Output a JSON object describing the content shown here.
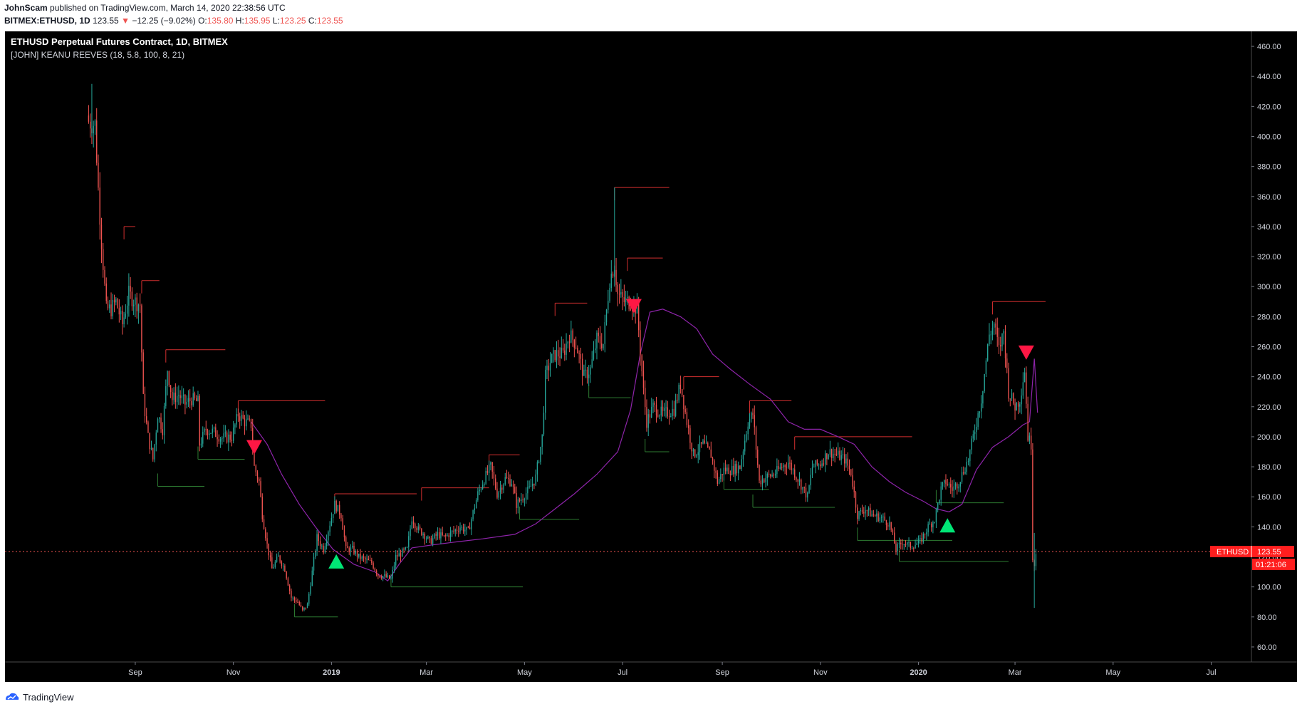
{
  "header": {
    "publisher": "JohnScam",
    "published_text": "published on TradingView.com, March 14, 2020 22:38:56 UTC",
    "symbol": "BITMEX:ETHUSD, 1D",
    "last": "123.55",
    "change": "−12.25 (−9.02%)",
    "o_label": "O:",
    "o": "135.80",
    "h_label": "H:",
    "h": "135.95",
    "l_label": "L:",
    "l": "123.25",
    "c_label": "C:",
    "c": "123.55"
  },
  "chart": {
    "title": "ETHUSD Perpetual Futures Contract, 1D, BITMEX",
    "indicator": "[JOHN] KEANU REEVES (18, 5.8, 100, 8, 21)",
    "price_tag_label": "ETHUSD",
    "price_tag_value": "123.55",
    "countdown": "01:21:06"
  },
  "footer": {
    "brand": "TradingView"
  },
  "colors": {
    "background": "#000000",
    "up_candle": "#26a69a",
    "down_candle": "#ef5350",
    "resistance": "#d32f2f",
    "support": "#2e7d32",
    "trail": "#8e24aa",
    "sell_signal": "#ff1744",
    "buy_signal": "#00e676"
  },
  "chart_data": {
    "type": "candlestick",
    "title": "ETHUSD Perpetual Futures Contract, 1D, BITMEX",
    "ylim": [
      50,
      470
    ],
    "y_ticks": [
      60,
      80,
      100,
      120,
      140,
      160,
      180,
      200,
      220,
      240,
      260,
      280,
      300,
      320,
      340,
      360,
      380,
      400,
      420,
      440,
      460
    ],
    "y_tick_labels": [
      "60.00",
      "80.00",
      "100.00",
      "120.00",
      "140.00",
      "160.00",
      "180.00",
      "200.00",
      "220.00",
      "240.00",
      "260.00",
      "280.00",
      "300.00",
      "320.00",
      "340.00",
      "360.00",
      "380.00",
      "400.00",
      "420.00",
      "440.00",
      "460.00"
    ],
    "x_range": [
      "2018-06-12",
      "2020-07-26"
    ],
    "x_ticks": [
      {
        "date": "2018-09-01",
        "label": "Sep"
      },
      {
        "date": "2018-11-01",
        "label": "Nov"
      },
      {
        "date": "2019-01-01",
        "label": "2019"
      },
      {
        "date": "2019-03-01",
        "label": "Mar"
      },
      {
        "date": "2019-05-01",
        "label": "May"
      },
      {
        "date": "2019-07-01",
        "label": "Jul"
      },
      {
        "date": "2019-09-01",
        "label": "Sep"
      },
      {
        "date": "2019-11-01",
        "label": "Nov"
      },
      {
        "date": "2020-01-01",
        "label": "2020"
      },
      {
        "date": "2020-03-01",
        "label": "Mar"
      },
      {
        "date": "2020-05-01",
        "label": "May"
      },
      {
        "date": "2020-07-01",
        "label": "Jul"
      }
    ],
    "price_path": [
      [
        "2018-08-03",
        410
      ],
      [
        "2018-08-07",
        408
      ],
      [
        "2018-08-09",
        365
      ],
      [
        "2018-08-11",
        330
      ],
      [
        "2018-08-14",
        285
      ],
      [
        "2018-08-17",
        285
      ],
      [
        "2018-08-20",
        290
      ],
      [
        "2018-08-24",
        275
      ],
      [
        "2018-08-28",
        295
      ],
      [
        "2018-09-01",
        290
      ],
      [
        "2018-09-04",
        288
      ],
      [
        "2018-09-06",
        225
      ],
      [
        "2018-09-09",
        200
      ],
      [
        "2018-09-12",
        185
      ],
      [
        "2018-09-15",
        215
      ],
      [
        "2018-09-18",
        205
      ],
      [
        "2018-09-21",
        245
      ],
      [
        "2018-09-24",
        225
      ],
      [
        "2018-09-28",
        228
      ],
      [
        "2018-10-02",
        222
      ],
      [
        "2018-10-06",
        225
      ],
      [
        "2018-10-10",
        223
      ],
      [
        "2018-10-11",
        195
      ],
      [
        "2018-10-15",
        205
      ],
      [
        "2018-10-20",
        203
      ],
      [
        "2018-10-25",
        199
      ],
      [
        "2018-10-31",
        200
      ],
      [
        "2018-11-04",
        215
      ],
      [
        "2018-11-08",
        210
      ],
      [
        "2018-11-12",
        208
      ],
      [
        "2018-11-14",
        180
      ],
      [
        "2018-11-17",
        170
      ],
      [
        "2018-11-19",
        148
      ],
      [
        "2018-11-22",
        128
      ],
      [
        "2018-11-25",
        112
      ],
      [
        "2018-11-29",
        120
      ],
      [
        "2018-12-03",
        112
      ],
      [
        "2018-12-07",
        93
      ],
      [
        "2018-12-11",
        90
      ],
      [
        "2018-12-14",
        84
      ],
      [
        "2018-12-17",
        88
      ],
      [
        "2018-12-20",
        110
      ],
      [
        "2018-12-23",
        133
      ],
      [
        "2018-12-27",
        125
      ],
      [
        "2018-12-30",
        138
      ],
      [
        "2019-01-03",
        155
      ],
      [
        "2019-01-07",
        148
      ],
      [
        "2019-01-10",
        125
      ],
      [
        "2019-01-14",
        125
      ],
      [
        "2019-01-18",
        120
      ],
      [
        "2019-01-22",
        118
      ],
      [
        "2019-01-26",
        116
      ],
      [
        "2019-01-30",
        108
      ],
      [
        "2019-02-03",
        107
      ],
      [
        "2019-02-07",
        105
      ],
      [
        "2019-02-10",
        120
      ],
      [
        "2019-02-17",
        125
      ],
      [
        "2019-02-20",
        146
      ],
      [
        "2019-02-24",
        138
      ],
      [
        "2019-02-27",
        136
      ],
      [
        "2019-03-03",
        130
      ],
      [
        "2019-03-08",
        135
      ],
      [
        "2019-03-12",
        133
      ],
      [
        "2019-03-18",
        137
      ],
      [
        "2019-03-22",
        140
      ],
      [
        "2019-03-27",
        137
      ],
      [
        "2019-04-02",
        162
      ],
      [
        "2019-04-06",
        172
      ],
      [
        "2019-04-10",
        180
      ],
      [
        "2019-04-14",
        162
      ],
      [
        "2019-04-19",
        172
      ],
      [
        "2019-04-23",
        170
      ],
      [
        "2019-04-26",
        155
      ],
      [
        "2019-04-30",
        160
      ],
      [
        "2019-05-04",
        165
      ],
      [
        "2019-05-08",
        173
      ],
      [
        "2019-05-12",
        200
      ],
      [
        "2019-05-14",
        240
      ],
      [
        "2019-05-17",
        250
      ],
      [
        "2019-05-20",
        255
      ],
      [
        "2019-05-25",
        255
      ],
      [
        "2019-05-29",
        268
      ],
      [
        "2019-06-02",
        262
      ],
      [
        "2019-06-07",
        240
      ],
      [
        "2019-06-11",
        245
      ],
      [
        "2019-06-15",
        265
      ],
      [
        "2019-06-19",
        262
      ],
      [
        "2019-06-23",
        305
      ],
      [
        "2019-06-26",
        315
      ],
      [
        "2019-06-28",
        295
      ],
      [
        "2019-07-02",
        290
      ],
      [
        "2019-07-06",
        290
      ],
      [
        "2019-07-10",
        285
      ],
      [
        "2019-07-14",
        230
      ],
      [
        "2019-07-16",
        210
      ],
      [
        "2019-07-20",
        220
      ],
      [
        "2019-07-26",
        215
      ],
      [
        "2019-08-02",
        218
      ],
      [
        "2019-08-06",
        235
      ],
      [
        "2019-08-10",
        210
      ],
      [
        "2019-08-14",
        188
      ],
      [
        "2019-08-20",
        195
      ],
      [
        "2019-08-25",
        188
      ],
      [
        "2019-08-29",
        170
      ],
      [
        "2019-09-02",
        178
      ],
      [
        "2019-09-07",
        178
      ],
      [
        "2019-09-12",
        180
      ],
      [
        "2019-09-17",
        210
      ],
      [
        "2019-09-20",
        215
      ],
      [
        "2019-09-24",
        170
      ],
      [
        "2019-09-28",
        173
      ],
      [
        "2019-10-03",
        175
      ],
      [
        "2019-10-08",
        180
      ],
      [
        "2019-10-12",
        183
      ],
      [
        "2019-10-18",
        172
      ],
      [
        "2019-10-24",
        160
      ],
      [
        "2019-10-27",
        180
      ],
      [
        "2019-11-01",
        182
      ],
      [
        "2019-11-06",
        190
      ],
      [
        "2019-11-11",
        188
      ],
      [
        "2019-11-16",
        185
      ],
      [
        "2019-11-20",
        176
      ],
      [
        "2019-11-24",
        148
      ],
      [
        "2019-11-29",
        152
      ],
      [
        "2019-12-03",
        148
      ],
      [
        "2019-12-09",
        146
      ],
      [
        "2019-12-14",
        142
      ],
      [
        "2019-12-18",
        125
      ],
      [
        "2019-12-22",
        130
      ],
      [
        "2019-12-27",
        127
      ],
      [
        "2020-01-02",
        130
      ],
      [
        "2020-01-07",
        140
      ],
      [
        "2020-01-11",
        145
      ],
      [
        "2020-01-15",
        165
      ],
      [
        "2020-01-18",
        170
      ],
      [
        "2020-01-22",
        165
      ],
      [
        "2020-01-26",
        170
      ],
      [
        "2020-02-01",
        185
      ],
      [
        "2020-02-05",
        205
      ],
      [
        "2020-02-09",
        225
      ],
      [
        "2020-02-14",
        268
      ],
      [
        "2020-02-17",
        275
      ],
      [
        "2020-02-20",
        258
      ],
      [
        "2020-02-23",
        270
      ],
      [
        "2020-02-26",
        230
      ],
      [
        "2020-03-01",
        220
      ],
      [
        "2020-03-04",
        225
      ],
      [
        "2020-03-07",
        245
      ],
      [
        "2020-03-09",
        200
      ],
      [
        "2020-03-11",
        195
      ],
      [
        "2020-03-12",
        120
      ],
      [
        "2020-03-13",
        115
      ],
      [
        "2020-03-14",
        123.55
      ]
    ],
    "wicks": [
      {
        "date": "2018-08-05",
        "low": 400,
        "high": 435
      },
      {
        "date": "2019-06-26",
        "low": 300,
        "high": 366
      },
      {
        "date": "2020-03-13",
        "low": 86,
        "high": 135.95
      }
    ],
    "resistance_levels": [
      {
        "from": "2018-08-25",
        "to": "2018-09-01",
        "y": 340
      },
      {
        "from": "2018-09-05",
        "to": "2018-09-16",
        "y": 304
      },
      {
        "from": "2018-09-20",
        "to": "2018-10-27",
        "y": 258
      },
      {
        "from": "2018-11-04",
        "to": "2018-12-28",
        "y": 224
      },
      {
        "from": "2019-01-03",
        "to": "2019-02-23",
        "y": 162
      },
      {
        "from": "2019-02-26",
        "to": "2019-04-09",
        "y": 166
      },
      {
        "from": "2019-04-09",
        "to": "2019-04-28",
        "y": 188
      },
      {
        "from": "2019-05-20",
        "to": "2019-06-09",
        "y": 289
      },
      {
        "from": "2019-06-26",
        "to": "2019-07-30",
        "y": 366
      },
      {
        "from": "2019-07-04",
        "to": "2019-07-26",
        "y": 319
      },
      {
        "from": "2019-08-08",
        "to": "2019-08-30",
        "y": 240
      },
      {
        "from": "2019-09-18",
        "to": "2019-10-14",
        "y": 224
      },
      {
        "from": "2019-10-16",
        "to": "2019-12-28",
        "y": 200
      },
      {
        "from": "2020-02-16",
        "to": "2020-03-20",
        "y": 290
      }
    ],
    "support_levels": [
      {
        "from": "2018-09-15",
        "to": "2018-10-14",
        "y": 167
      },
      {
        "from": "2018-10-10",
        "to": "2018-11-08",
        "y": 185
      },
      {
        "from": "2018-12-09",
        "to": "2019-01-05",
        "y": 80
      },
      {
        "from": "2019-02-07",
        "to": "2019-04-30",
        "y": 100
      },
      {
        "from": "2019-04-28",
        "to": "2019-06-04",
        "y": 145
      },
      {
        "from": "2019-06-10",
        "to": "2019-07-06",
        "y": 226
      },
      {
        "from": "2019-07-15",
        "to": "2019-07-30",
        "y": 190
      },
      {
        "from": "2019-09-02",
        "to": "2019-09-30",
        "y": 165
      },
      {
        "from": "2019-09-20",
        "to": "2019-11-10",
        "y": 153
      },
      {
        "from": "2019-12-20",
        "to": "2020-02-26",
        "y": 117
      },
      {
        "from": "2020-01-12",
        "to": "2020-02-23",
        "y": 156
      },
      {
        "from": "2019-11-24",
        "to": "2020-01-22",
        "y": 131
      }
    ],
    "trail_line": [
      [
        "2018-11-12",
        210
      ],
      [
        "2018-11-22",
        195
      ],
      [
        "2018-12-01",
        175
      ],
      [
        "2018-12-12",
        155
      ],
      [
        "2018-12-22",
        140
      ],
      [
        "2019-01-02",
        125
      ],
      [
        "2019-01-15",
        115
      ],
      [
        "2019-01-28",
        110
      ],
      [
        "2019-02-05",
        104
      ],
      [
        "2019-02-12",
        115
      ],
      [
        "2019-02-20",
        126
      ],
      [
        "2019-03-05",
        128
      ],
      [
        "2019-03-20",
        130
      ],
      [
        "2019-04-05",
        132
      ],
      [
        "2019-04-25",
        135
      ],
      [
        "2019-05-08",
        142
      ],
      [
        "2019-05-20",
        152
      ],
      [
        "2019-06-01",
        162
      ],
      [
        "2019-06-15",
        175
      ],
      [
        "2019-06-28",
        190
      ],
      [
        "2019-07-06",
        218
      ],
      [
        "2019-07-12",
        255
      ],
      [
        "2019-07-18",
        283
      ],
      [
        "2019-07-26",
        285
      ],
      [
        "2019-08-06",
        280
      ],
      [
        "2019-08-16",
        272
      ],
      [
        "2019-08-26",
        255
      ],
      [
        "2019-09-06",
        245
      ],
      [
        "2019-09-18",
        235
      ],
      [
        "2019-10-01",
        225
      ],
      [
        "2019-10-12",
        210
      ],
      [
        "2019-10-22",
        205
      ],
      [
        "2019-11-01",
        205
      ],
      [
        "2019-11-12",
        200
      ],
      [
        "2019-11-22",
        195
      ],
      [
        "2019-12-03",
        180
      ],
      [
        "2019-12-14",
        170
      ],
      [
        "2019-12-24",
        163
      ],
      [
        "2020-01-04",
        157
      ],
      [
        "2020-01-12",
        152
      ],
      [
        "2020-01-20",
        150
      ],
      [
        "2020-01-28",
        155
      ],
      [
        "2020-02-06",
        178
      ],
      [
        "2020-02-16",
        193
      ],
      [
        "2020-02-26",
        200
      ],
      [
        "2020-03-06",
        208
      ],
      [
        "2020-03-10",
        210
      ],
      [
        "2020-03-13",
        252
      ],
      [
        "2020-03-15",
        216
      ]
    ],
    "signals": [
      {
        "date": "2018-11-14",
        "y": 193,
        "type": "sell"
      },
      {
        "date": "2019-01-04",
        "y": 117,
        "type": "buy"
      },
      {
        "date": "2019-07-08",
        "y": 287,
        "type": "sell"
      },
      {
        "date": "2020-01-19",
        "y": 141,
        "type": "buy"
      },
      {
        "date": "2020-03-08",
        "y": 256,
        "type": "sell"
      }
    ],
    "last_price": 123.55
  }
}
